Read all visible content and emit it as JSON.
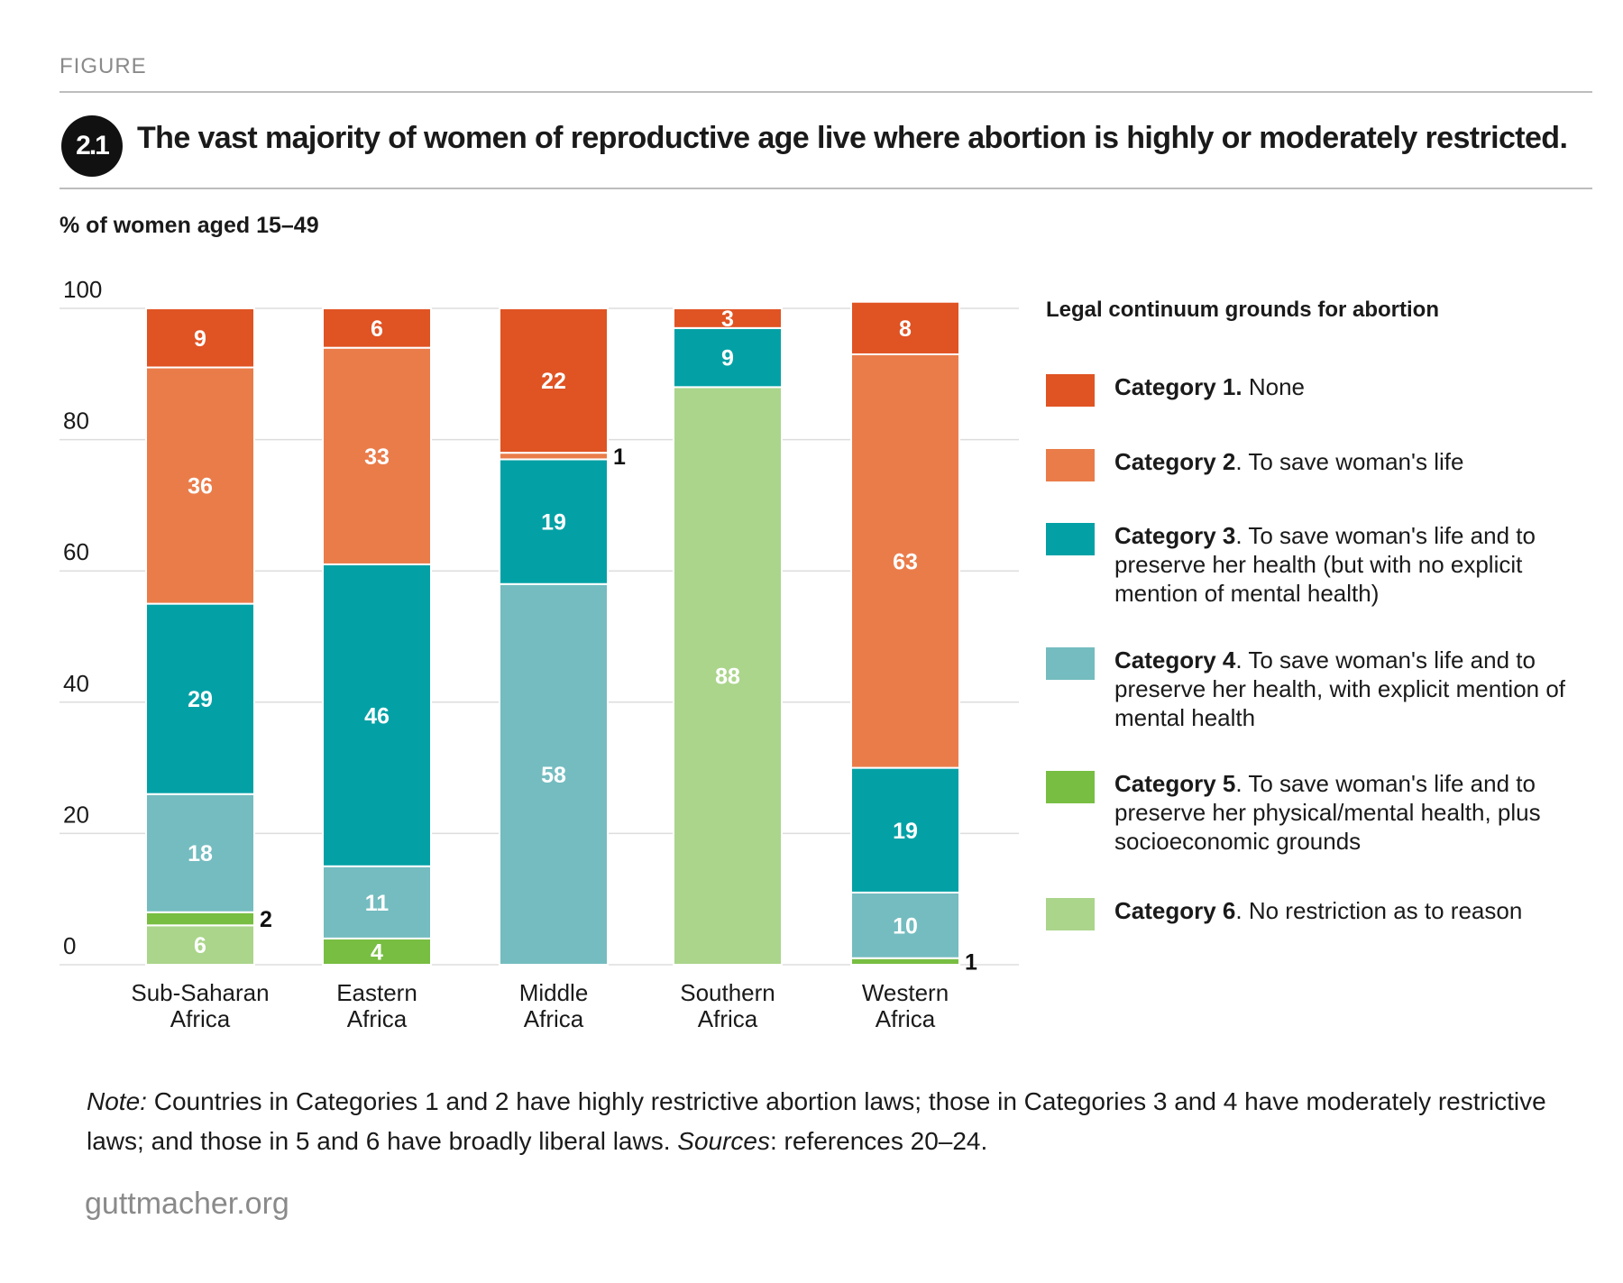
{
  "header": {
    "figure_label": "FIGURE",
    "figure_number": "2.1",
    "title": "The vast majority of women of reproductive age live where abortion is highly or moderately restricted."
  },
  "colors": {
    "cat1": "#e05323",
    "cat2": "#ea7c4a",
    "cat3": "#03a1a6",
    "cat4": "#74bcc0",
    "cat5": "#78be42",
    "cat6": "#aad58b",
    "gridline": "#dddddd",
    "badge": "#111111"
  },
  "legend": {
    "title": "Legal continuum grounds for abortion",
    "items": [
      {
        "label": "Category 1.",
        "desc": " None",
        "color": "#e05323"
      },
      {
        "label": "Category 2",
        "desc": ". To save woman's life",
        "color": "#ea7c4a"
      },
      {
        "label": "Category 3",
        "desc": ". To save woman's life and to preserve her health (but with no explicit mention of mental health)",
        "color": "#03a1a6"
      },
      {
        "label": "Category 4",
        "desc": ". To save woman's life and to preserve her health, with explicit mention of mental health",
        "color": "#74bcc0"
      },
      {
        "label": "Category 5",
        "desc": ". To save woman's life and to preserve her physical/mental health, plus socioeconomic grounds",
        "color": "#78be42"
      },
      {
        "label": "Category 6",
        "desc": ". No restriction as to reason",
        "color": "#aad58b"
      }
    ]
  },
  "chart_data": {
    "type": "bar",
    "stacked": true,
    "ylabel": "% of women aged 15–49",
    "ylim": [
      0,
      100
    ],
    "yticks": [
      0,
      20,
      40,
      60,
      80,
      100
    ],
    "grid": true,
    "legend_position": "right",
    "categories": [
      "Sub-Saharan\nAfrica",
      "Eastern\nAfrica",
      "Middle\nAfrica",
      "Southern\nAfrica",
      "Western\nAfrica"
    ],
    "series": [
      {
        "name": "Category 6",
        "values": [
          6,
          0,
          0,
          88,
          0
        ]
      },
      {
        "name": "Category 5",
        "values": [
          2,
          4,
          0,
          0,
          1
        ]
      },
      {
        "name": "Category 4",
        "values": [
          18,
          11,
          58,
          0,
          10
        ]
      },
      {
        "name": "Category 3",
        "values": [
          29,
          46,
          19,
          9,
          19
        ]
      },
      {
        "name": "Category 2",
        "values": [
          36,
          33,
          1,
          0,
          63
        ]
      },
      {
        "name": "Category 1",
        "values": [
          9,
          6,
          22,
          3,
          8
        ]
      }
    ]
  },
  "note": {
    "note_label": "Note:",
    "note_text": " Countries in Categories 1 and 2 have highly restrictive abortion laws; those in Categories 3 and 4 have moderately restrictive laws; and those in 5 and 6 have broadly liberal laws. ",
    "sources_label": "Sources",
    "sources_text": ": references 20–24."
  },
  "footer": {
    "site": "guttmacher.org"
  }
}
